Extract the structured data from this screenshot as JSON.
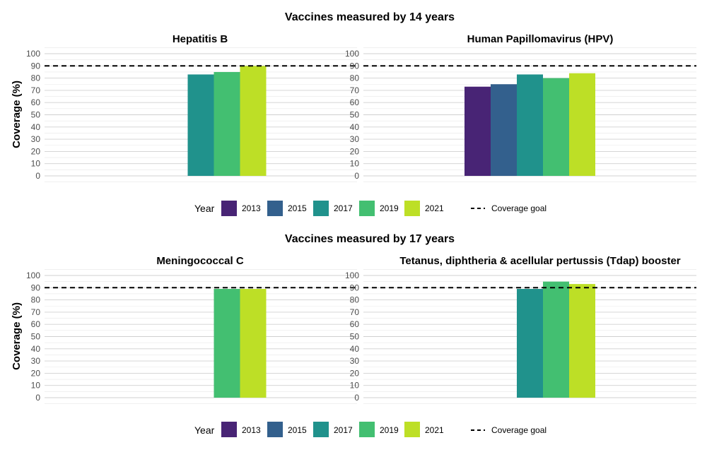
{
  "colors": {
    "2013": "#482475",
    "2015": "#33608d",
    "2017": "#20928c",
    "2019": "#43bf71",
    "2021": "#bddf26",
    "grid": "#d9d9d9",
    "goal_line": "#000000"
  },
  "chart_data": [
    {
      "type": "bar",
      "group_title": "Vaccines measured by 14 years",
      "title": "Hepatitis B",
      "ylabel": "Coverage (%)",
      "ylim": [
        0,
        100
      ],
      "yticks": [
        0,
        10,
        20,
        30,
        40,
        50,
        60,
        70,
        80,
        90,
        100
      ],
      "goal": 90,
      "series": [
        {
          "name": "2013",
          "value": null
        },
        {
          "name": "2015",
          "value": null
        },
        {
          "name": "2017",
          "value": 83
        },
        {
          "name": "2019",
          "value": 85
        },
        {
          "name": "2021",
          "value": 90
        }
      ]
    },
    {
      "type": "bar",
      "title": "Human Papillomavirus (HPV)",
      "ylim": [
        0,
        100
      ],
      "yticks": [
        0,
        10,
        20,
        30,
        40,
        50,
        60,
        70,
        80,
        90,
        100
      ],
      "goal": 90,
      "series": [
        {
          "name": "2013",
          "value": 73
        },
        {
          "name": "2015",
          "value": 75
        },
        {
          "name": "2017",
          "value": 83
        },
        {
          "name": "2019",
          "value": 80
        },
        {
          "name": "2021",
          "value": 84
        }
      ]
    },
    {
      "type": "bar",
      "group_title": "Vaccines measured by 17 years",
      "title": "Meningococcal C",
      "ylabel": "Coverage (%)",
      "ylim": [
        0,
        100
      ],
      "yticks": [
        0,
        10,
        20,
        30,
        40,
        50,
        60,
        70,
        80,
        90,
        100
      ],
      "goal": 90,
      "series": [
        {
          "name": "2013",
          "value": null
        },
        {
          "name": "2015",
          "value": null
        },
        {
          "name": "2017",
          "value": null
        },
        {
          "name": "2019",
          "value": 89
        },
        {
          "name": "2021",
          "value": 89
        }
      ]
    },
    {
      "type": "bar",
      "title": "Tetanus, diphtheria & acellular pertussis (Tdap) booster",
      "ylim": [
        0,
        100
      ],
      "yticks": [
        0,
        10,
        20,
        30,
        40,
        50,
        60,
        70,
        80,
        90,
        100
      ],
      "goal": 90,
      "series": [
        {
          "name": "2013",
          "value": null
        },
        {
          "name": "2015",
          "value": null
        },
        {
          "name": "2017",
          "value": 89
        },
        {
          "name": "2019",
          "value": 95
        },
        {
          "name": "2021",
          "value": 93
        }
      ]
    }
  ],
  "legend": {
    "title": "Year",
    "items": [
      "2013",
      "2015",
      "2017",
      "2019",
      "2021"
    ],
    "goal_label": "Coverage goal"
  }
}
